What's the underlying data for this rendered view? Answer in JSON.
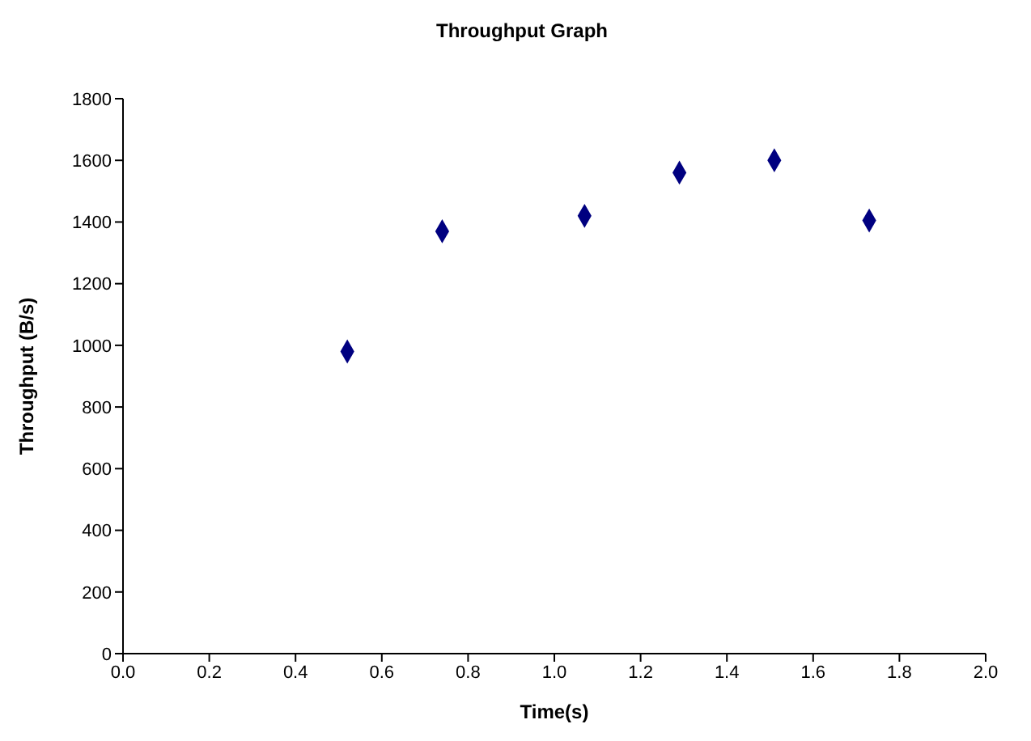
{
  "chart_data": {
    "type": "scatter",
    "title": "Throughput Graph",
    "xlabel": "Time(s)",
    "ylabel": "Throughput (B/s)",
    "x": [
      0.52,
      0.74,
      1.07,
      1.29,
      1.51,
      1.73
    ],
    "series": [
      {
        "color": "#000080",
        "values": [
          980,
          1370,
          1420,
          1560,
          1600,
          1405
        ]
      }
    ],
    "xlim": [
      0,
      2
    ],
    "xticks": [
      {
        "value": 0,
        "label": "0.0"
      },
      {
        "value": 0.2,
        "label": "0.2"
      },
      {
        "value": 0.4,
        "label": "0.4"
      },
      {
        "value": 0.6,
        "label": "0.6"
      },
      {
        "value": 0.8,
        "label": "0.8"
      },
      {
        "value": 1,
        "label": "1.0"
      },
      {
        "value": 1.2,
        "label": "1.2"
      },
      {
        "value": 1.4,
        "label": "1.4"
      },
      {
        "value": 1.6,
        "label": "1.6"
      },
      {
        "value": 1.8,
        "label": "1.8"
      },
      {
        "value": 2,
        "label": "2.0"
      }
    ],
    "ylim": [
      0,
      1800
    ],
    "yticks": [
      0,
      200,
      400,
      600,
      800,
      1000,
      1200,
      1400,
      1600,
      1800
    ],
    "grid": false,
    "legend": false,
    "marker": "diamond"
  }
}
